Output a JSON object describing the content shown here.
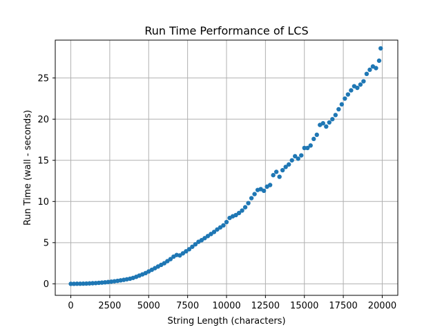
{
  "chart_data": {
    "type": "scatter",
    "title": "Run Time Performance of LCS",
    "xlabel": "String Length (characters)",
    "ylabel": "Run Time (wall - seconds)",
    "xlim": [
      -1000,
      21000
    ],
    "ylim": [
      -1.4,
      29.6
    ],
    "xticks": [
      0,
      2500,
      5000,
      7500,
      10000,
      12500,
      15000,
      17500,
      20000
    ],
    "yticks": [
      0,
      5,
      10,
      15,
      20,
      25
    ],
    "grid": true,
    "marker_color": "#1f77b4",
    "points": {
      "x": [
        0,
        200,
        400,
        600,
        800,
        1000,
        1200,
        1400,
        1600,
        1800,
        2000,
        2200,
        2400,
        2600,
        2800,
        3000,
        3200,
        3400,
        3600,
        3800,
        4000,
        4200,
        4400,
        4600,
        4800,
        5000,
        5200,
        5400,
        5600,
        5800,
        6000,
        6200,
        6400,
        6600,
        6800,
        7000,
        7200,
        7400,
        7600,
        7800,
        8000,
        8200,
        8400,
        8600,
        8800,
        9000,
        9200,
        9400,
        9600,
        9800,
        10000,
        10200,
        10400,
        10600,
        10800,
        11000,
        11200,
        11400,
        11600,
        11800,
        12000,
        12200,
        12400,
        12600,
        12800,
        13000,
        13200,
        13400,
        13600,
        13800,
        14000,
        14200,
        14400,
        14600,
        14800,
        15000,
        15200,
        15400,
        15600,
        15800,
        16000,
        16200,
        16400,
        16600,
        16800,
        17000,
        17200,
        17400,
        17600,
        17800,
        18000,
        18200,
        18400,
        18600,
        18800,
        19000,
        19200,
        19400,
        19600,
        19800,
        19900
      ],
      "y": [
        0.0,
        0.0,
        0.01,
        0.01,
        0.02,
        0.03,
        0.05,
        0.07,
        0.09,
        0.12,
        0.15,
        0.18,
        0.22,
        0.26,
        0.31,
        0.36,
        0.42,
        0.48,
        0.55,
        0.62,
        0.72,
        0.85,
        1.0,
        1.15,
        1.3,
        1.5,
        1.7,
        1.9,
        2.1,
        2.3,
        2.5,
        2.75,
        3.0,
        3.3,
        3.5,
        3.45,
        3.7,
        3.95,
        4.2,
        4.5,
        4.8,
        5.1,
        5.3,
        5.55,
        5.8,
        6.05,
        6.3,
        6.6,
        6.85,
        7.1,
        7.5,
        8.0,
        8.2,
        8.35,
        8.6,
        8.9,
        9.3,
        9.8,
        10.4,
        10.9,
        11.4,
        11.5,
        11.3,
        11.8,
        12.0,
        13.2,
        13.6,
        13.0,
        13.8,
        14.2,
        14.5,
        15.0,
        15.5,
        15.2,
        15.6,
        16.5,
        16.5,
        16.8,
        17.6,
        18.1,
        19.3,
        19.5,
        19.1,
        19.6,
        20.0,
        20.5,
        21.2,
        21.8,
        22.5,
        23.0,
        23.5,
        24.0,
        23.8,
        24.2,
        24.6,
        25.5,
        26.0,
        26.4,
        26.2,
        27.1,
        28.6
      ]
    }
  }
}
